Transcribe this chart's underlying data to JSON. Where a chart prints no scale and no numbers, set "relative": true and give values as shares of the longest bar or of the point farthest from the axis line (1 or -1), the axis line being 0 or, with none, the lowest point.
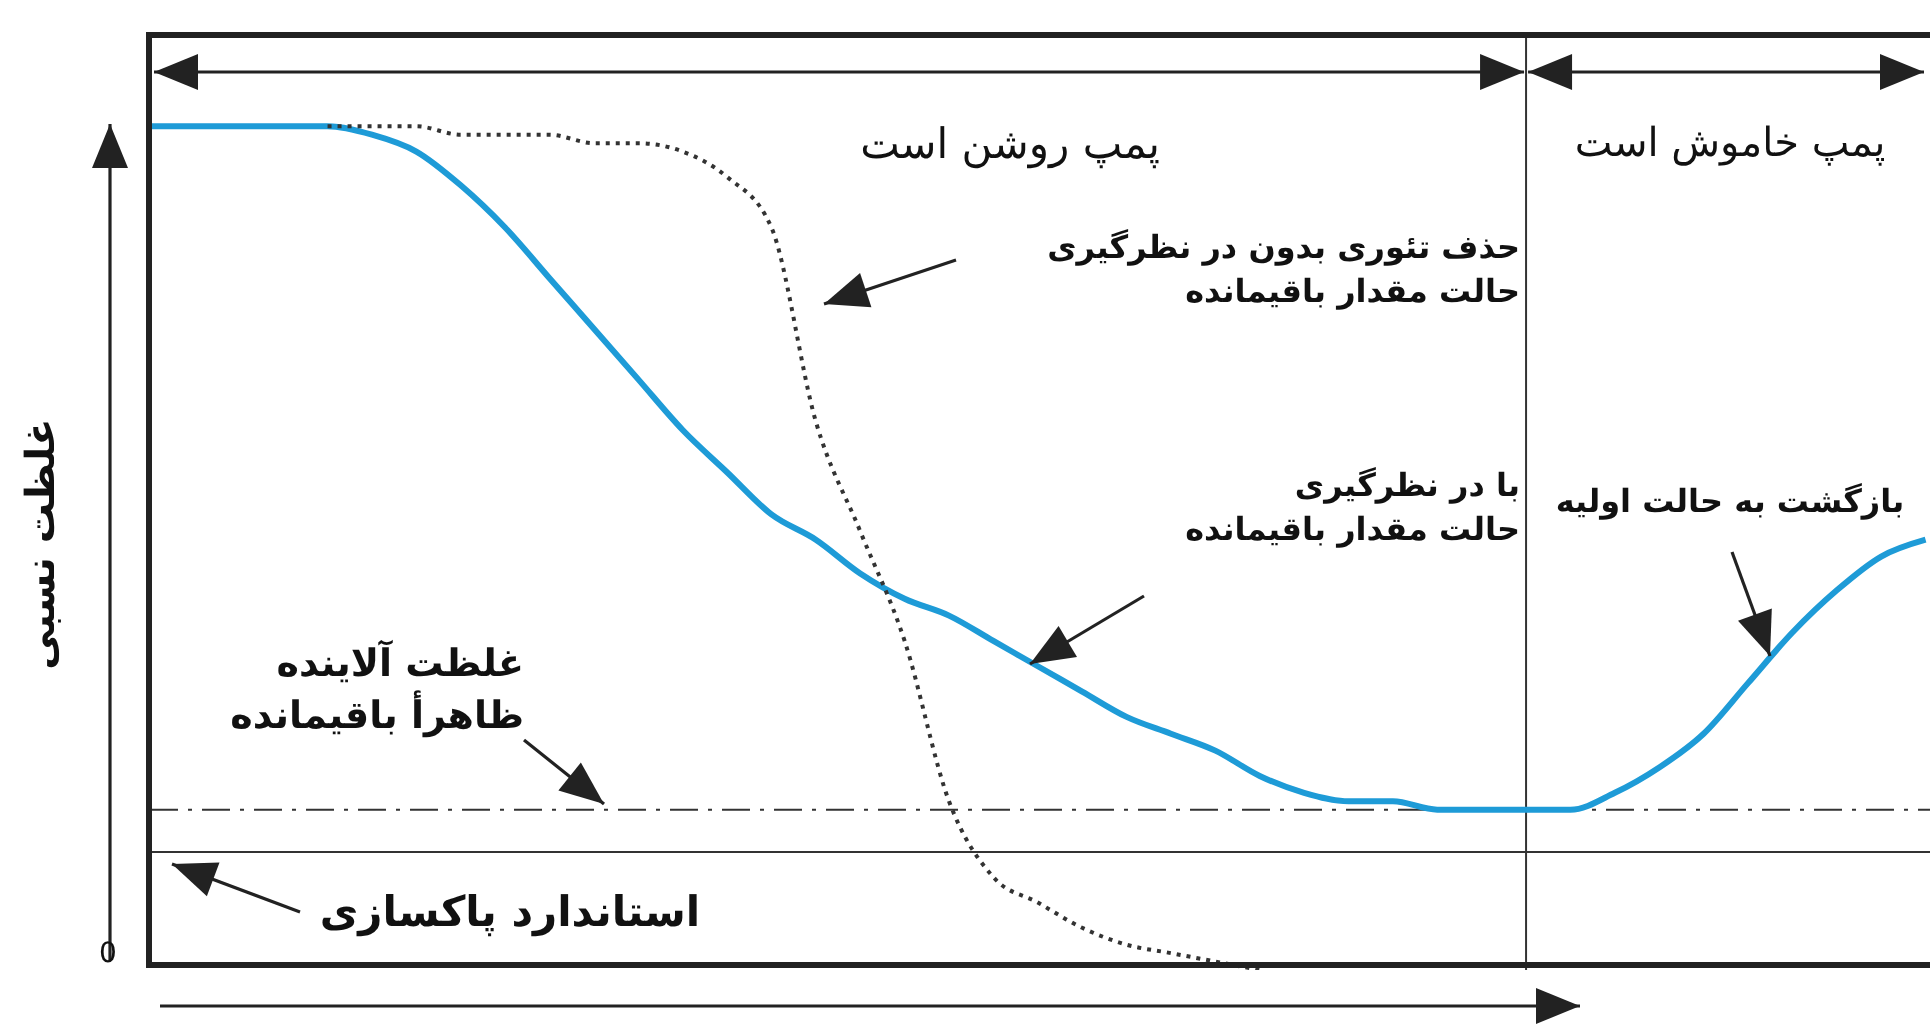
{
  "chart_data": {
    "type": "line",
    "relative": true,
    "ylabel": "غلظت نسبی",
    "categories": [
      null,
      null,
      null,
      null,
      null,
      null,
      null,
      null,
      null,
      null,
      null,
      null,
      null,
      null,
      null,
      null,
      null,
      null,
      null,
      null,
      null,
      null,
      null,
      null,
      null,
      null,
      null,
      null,
      null,
      null,
      null,
      null,
      null,
      null,
      null,
      null,
      null,
      null,
      null,
      null,
      null
    ],
    "series": [
      {
        "color": "#1e9bd7",
        "line_style": "solid",
        "values": [
          1,
          1,
          1,
          1,
          1,
          0.99,
          0.97,
          0.93,
          0.88,
          0.82,
          0.76,
          0.7,
          0.64,
          0.59,
          0.54,
          0.51,
          0.47,
          0.44,
          0.42,
          0.39,
          0.36,
          0.33,
          0.3,
          0.28,
          0.26,
          0.23,
          0.21,
          0.2,
          0.2,
          0.19,
          0.19,
          0.19,
          0.19,
          0.21,
          0.24,
          0.28,
          0.34,
          0.4,
          0.45,
          0.49,
          0.51
        ]
      },
      {
        "color": "#333333",
        "line_style": "dotted",
        "values": [
          null,
          null,
          null,
          null,
          1,
          1,
          1,
          0.99,
          0.99,
          0.99,
          0.98,
          0.98,
          0.97,
          0.94,
          0.88,
          0.65,
          0.52,
          0.39,
          0.2,
          0.11,
          0.08,
          0.05,
          0.03,
          0.02,
          0.01,
          0,
          null,
          null,
          null,
          null,
          null,
          null,
          null,
          null,
          null,
          null,
          null,
          null,
          null,
          null,
          null
        ]
      }
    ],
    "ref_lines": [
      {
        "axis": "y",
        "value": 0.19,
        "label": "غلظت آلاینده\nظاهرأ باقیمانده",
        "line_style": "dashdot",
        "color": "#333333"
      },
      {
        "axis": "y",
        "value": 0.14,
        "label": "استاندارد پاکسازی",
        "line_style": "solid",
        "color": "#333333"
      }
    ],
    "annotations": [
      "پمپ روشن است",
      "پمپ خاموش است",
      "حذف تئوری بدون در نظرگیری\nحالت مقدار باقیمانده",
      "با در نظرگیری\nحالت مقدار باقیمانده",
      "بازگشت به حالت اولیه",
      "0"
    ],
    "tick_labels": false
  }
}
